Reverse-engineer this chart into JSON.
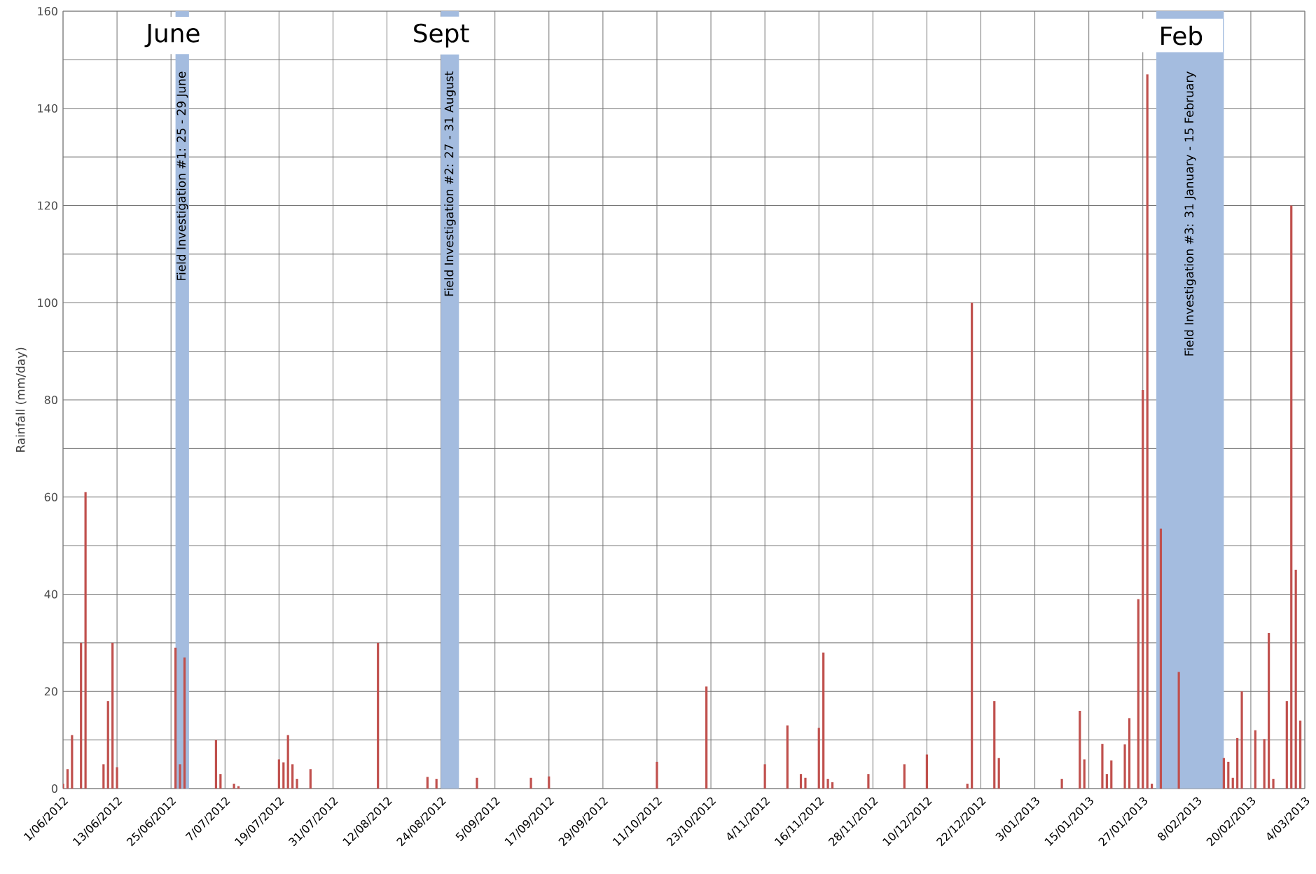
{
  "chart_data": {
    "type": "bar",
    "ylabel": "Rainfall (mm/day)",
    "color": "#c0504d",
    "x": [
      "2012-06-01",
      "2012-06-02",
      "2012-06-03",
      "2012-06-05",
      "2012-06-06",
      "2012-06-10",
      "2012-06-11",
      "2012-06-12",
      "2012-06-13",
      "2012-06-26",
      "2012-06-27",
      "2012-06-28",
      "2012-07-05",
      "2012-07-06",
      "2012-07-09",
      "2012-07-10",
      "2012-07-19",
      "2012-07-20",
      "2012-07-21",
      "2012-07-22",
      "2012-07-23",
      "2012-07-26",
      "2012-08-10",
      "2012-08-21",
      "2012-08-23",
      "2012-09-01",
      "2012-09-13",
      "2012-09-17",
      "2012-10-11",
      "2012-10-22",
      "2012-11-04",
      "2012-11-09",
      "2012-11-12",
      "2012-11-13",
      "2012-11-16",
      "2012-11-17",
      "2012-11-18",
      "2012-11-19",
      "2012-11-27",
      "2012-12-05",
      "2012-12-10",
      "2012-12-19",
      "2012-12-20",
      "2012-12-25",
      "2012-12-26",
      "2013-01-09",
      "2013-01-13",
      "2013-01-14",
      "2013-01-18",
      "2013-01-19",
      "2013-01-20",
      "2013-01-23",
      "2013-01-24",
      "2013-01-26",
      "2013-01-27",
      "2013-01-28",
      "2013-01-29",
      "2013-01-31",
      "2013-02-04",
      "2013-02-14",
      "2013-02-15",
      "2013-02-16",
      "2013-02-17",
      "2013-02-18",
      "2013-02-21",
      "2013-02-23",
      "2013-02-24",
      "2013-02-25",
      "2013-02-28",
      "2013-03-01",
      "2013-03-02",
      "2013-03-03"
    ],
    "values": [
      1,
      4,
      11,
      30,
      61,
      5,
      18,
      30,
      4.4,
      29,
      5,
      27,
      10,
      3,
      1,
      0.5,
      6,
      5.4,
      11,
      5,
      2,
      4,
      30,
      2.4,
      2,
      2.2,
      2.2,
      2.5,
      5.5,
      21,
      5,
      13,
      3,
      2.2,
      12.5,
      28,
      2,
      1.3,
      3,
      5,
      7,
      1,
      100,
      18,
      6.3,
      2,
      16,
      6,
      9.2,
      3,
      5.8,
      9.1,
      14.5,
      39,
      82,
      147,
      1,
      53.5,
      24,
      6.3,
      5.5,
      2.2,
      10.4,
      20,
      12,
      10.2,
      32,
      2,
      18,
      120,
      45,
      14
    ],
    "xlim": [
      "2012-06-01",
      "2013-03-04"
    ],
    "xticks": [
      {
        "value": "2012-06-01",
        "label": "1/06/2012"
      },
      {
        "value": "2012-06-13",
        "label": "13/06/2012"
      },
      {
        "value": "2012-06-25",
        "label": "25/06/2012"
      },
      {
        "value": "2012-07-07",
        "label": "7/07/2012"
      },
      {
        "value": "2012-07-19",
        "label": "19/07/2012"
      },
      {
        "value": "2012-07-31",
        "label": "31/07/2012"
      },
      {
        "value": "2012-08-12",
        "label": "12/08/2012"
      },
      {
        "value": "2012-08-24",
        "label": "24/08/2012"
      },
      {
        "value": "2012-09-05",
        "label": "5/09/2012"
      },
      {
        "value": "2012-09-17",
        "label": "17/09/2012"
      },
      {
        "value": "2012-09-29",
        "label": "29/09/2012"
      },
      {
        "value": "2012-10-11",
        "label": "11/10/2012"
      },
      {
        "value": "2012-10-23",
        "label": "23/10/2012"
      },
      {
        "value": "2012-11-04",
        "label": "4/11/2012"
      },
      {
        "value": "2012-11-16",
        "label": "16/11/2012"
      },
      {
        "value": "2012-11-28",
        "label": "28/11/2012"
      },
      {
        "value": "2012-12-10",
        "label": "10/12/2012"
      },
      {
        "value": "2012-12-22",
        "label": "22/12/2012"
      },
      {
        "value": "2013-01-03",
        "label": "3/01/2013"
      },
      {
        "value": "2013-01-15",
        "label": "15/01/2013"
      },
      {
        "value": "2013-01-27",
        "label": "27/01/2013"
      },
      {
        "value": "2013-02-08",
        "label": "8/02/2013"
      },
      {
        "value": "2013-02-20",
        "label": "20/02/2013"
      },
      {
        "value": "2013-03-04",
        "label": "4/03/2013"
      }
    ],
    "ylim": [
      0,
      160
    ],
    "yticks": [
      0,
      {
        "value": 10,
        "label": null
      },
      20,
      {
        "value": 30,
        "label": null
      },
      40,
      {
        "value": 50,
        "label": null
      },
      60,
      {
        "value": 70,
        "label": null
      },
      80,
      {
        "value": 90,
        "label": null
      },
      100,
      {
        "value": 110,
        "label": null
      },
      120,
      {
        "value": 130,
        "label": null
      },
      140,
      {
        "value": 150,
        "label": null
      },
      160
    ],
    "grid": true,
    "bands": [
      {
        "axis": "x",
        "from": "2012-06-26",
        "to": "2012-06-29",
        "label": "Field Investigation  #1: 25 - 29 June",
        "color": "#a4bcdf"
      },
      {
        "axis": "x",
        "from": "2012-08-24",
        "to": "2012-08-28",
        "label": "Field Investigation  #2: 27 - 31 August",
        "color": "#a4bcdf"
      },
      {
        "axis": "x",
        "from": "2013-01-30",
        "to": "2013-02-14",
        "label": "Field Investigation  #3: 31 January - 15 February",
        "color": "#a4bcdf"
      }
    ],
    "annotations": [
      "June",
      "Sept",
      "Feb"
    ]
  }
}
